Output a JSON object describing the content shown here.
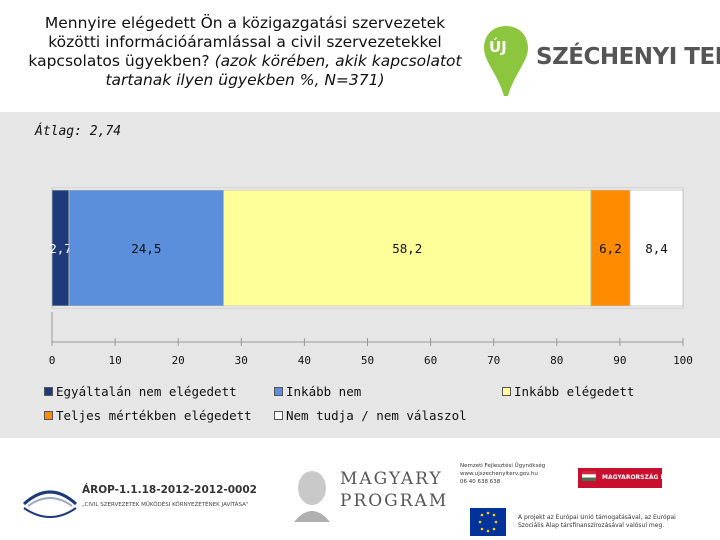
{
  "header": {
    "title_main": "Mennyire elégedett Ön a közigazgatási szervezetek közötti információáramlással a civil szervezetekkel kapcsolatos ügyekben?",
    "title_note": "(azok körében, akik kapcsolatot tartanak ilyen ügyekben %, N=371)"
  },
  "logo": {
    "text": "SZÉCHENYI TERV",
    "badge": "ÚJ"
  },
  "chart_data": {
    "type": "bar",
    "orientation": "horizontal",
    "stacked": true,
    "title": "Átlag: 2,74",
    "xlim": [
      0,
      100
    ],
    "x_ticks": [
      "0",
      "10",
      "20",
      "30",
      "40",
      "50",
      "60",
      "70",
      "80",
      "90",
      "100"
    ],
    "series": [
      {
        "name": "Egyáltalán nem elégedett",
        "value": 2.7,
        "label": "2,7",
        "color": "#1f3a7a"
      },
      {
        "name": "Inkább nem",
        "value": 24.5,
        "label": "24,5",
        "color": "#5b8fdc"
      },
      {
        "name": "Inkább elégedett",
        "value": 58.2,
        "label": "58,2",
        "color": "#ffff99"
      },
      {
        "name": "Teljes mértékben elégedett",
        "value": 6.2,
        "label": "6,2",
        "color": "#ff8c00"
      },
      {
        "name": "Nem tudja / nem válaszol",
        "value": 8.4,
        "label": "8,4",
        "color": "#ffffff"
      }
    ],
    "legend_position": "bottom"
  },
  "footer": {
    "arop_code": "ÁROP-1.1.18-2012-2012-0002",
    "arop_sub": "„CIVIL SZERVEZETEK MŰKÖDÉSI KÖRNYEZETÉNEK JAVÍTÁSA\"",
    "mp_line1": "MAGYARY",
    "mp_line2": "PROGRAM",
    "nfu_line1": "Nemzeti Fejlesztési Ügynökség",
    "nfu_line2": "www.ujszechenyiterv.gov.hu",
    "nfu_line3": "06 40 638 638",
    "hu_badge": "MAGYARORSZÁG MEGÚJUL",
    "eu_line1": "A projekt az Európai Unió támogatásával, az Európai",
    "eu_line2": "Szociális Alap társfinanszírozásával valósul meg."
  }
}
